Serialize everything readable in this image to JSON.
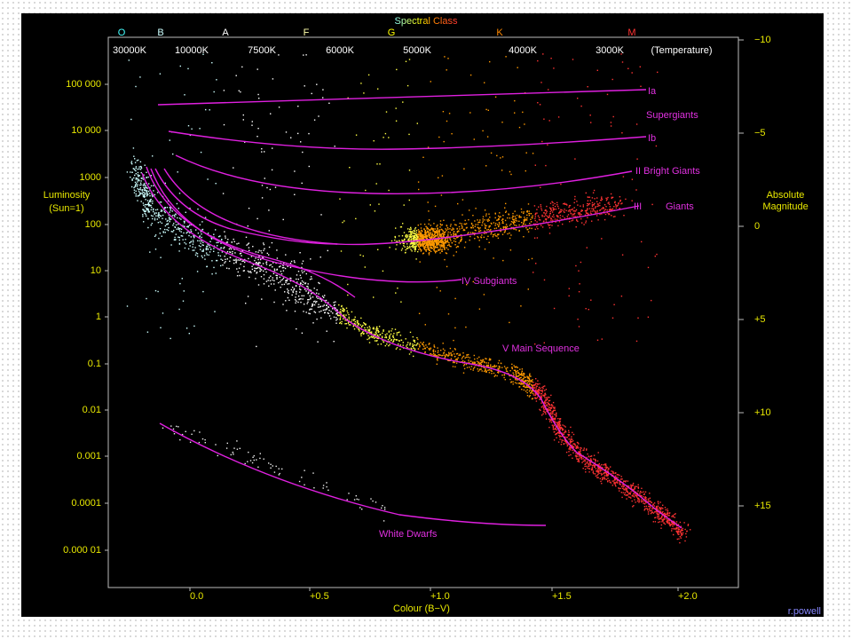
{
  "title": "Spectral Class",
  "spectral_classes": [
    "O",
    "B",
    "A",
    "F",
    "G",
    "K",
    "M"
  ],
  "temperatures": [
    "30000K",
    "10000K",
    "7500K",
    "6000K",
    "5000K",
    "4000K",
    "3000K",
    "(Temperature)"
  ],
  "left_axis": {
    "label": [
      "Luminosity",
      "(Sun=1)"
    ],
    "ticks": [
      "100 000",
      "10 000",
      "1000",
      "100",
      "10",
      "1",
      "0.1",
      "0.01",
      "0.001",
      "0.0001",
      "0.000 01"
    ]
  },
  "right_axis": {
    "label": [
      "Absolute",
      "Magnitude"
    ],
    "ticks": [
      "−10",
      "−5",
      "0",
      "+5",
      "+10",
      "+15"
    ]
  },
  "bottom_axis": {
    "label": "Colour (B−V)",
    "ticks": [
      "0.0",
      "+0.5",
      "+1.0",
      "+1.5",
      "+2.0"
    ]
  },
  "branches": [
    "Ia",
    "Supergiants",
    "Ib",
    "II Bright Giants",
    "III",
    "Giants",
    "IV  Subgiants",
    "V  Main Sequence",
    "White Dwarfs"
  ],
  "credit": "r.powell"
}
